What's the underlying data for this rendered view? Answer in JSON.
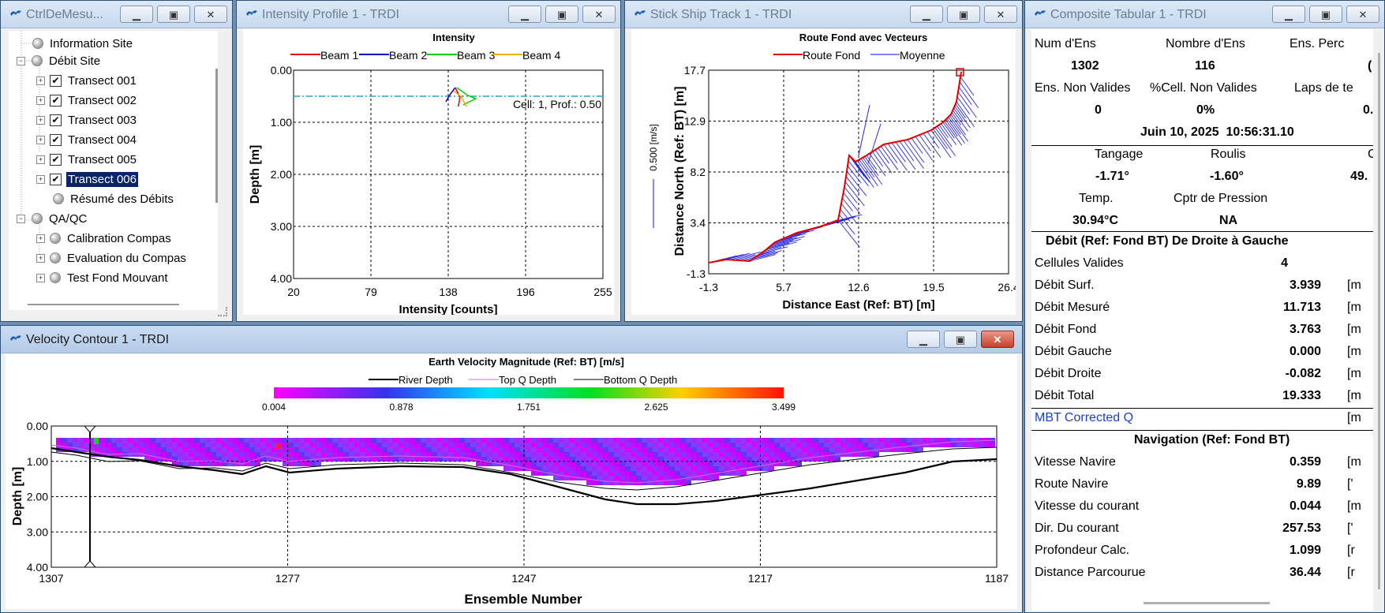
{
  "windows": {
    "ctrl": {
      "title": "CtrlDeMesu..."
    },
    "intensity": {
      "title": "Intensity Profile 1 - TRDI"
    },
    "track": {
      "title": "Stick Ship Track 1 - TRDI"
    },
    "composite": {
      "title": "Composite Tabular 1 - TRDI"
    },
    "velocity": {
      "title": "Velocity Contour 1 - TRDI"
    }
  },
  "tree": {
    "info": "Information Site",
    "debit": "Débit Site",
    "transects": [
      "Transect 001",
      "Transect 002",
      "Transect 003",
      "Transect 004",
      "Transect 005",
      "Transect 006"
    ],
    "resume": "Résumé des Débits",
    "qaqc": "QA/QC",
    "qa_items": [
      "Calibration Compas",
      "Evaluation du Compas",
      "Test Fond Mouvant"
    ]
  },
  "intensity_chart": {
    "title": "Intensity",
    "legend": [
      "Beam 1",
      "Beam 2",
      "Beam 3",
      "Beam 4"
    ],
    "colors": [
      "#e00000",
      "#0000d0",
      "#00d000",
      "#f0b000"
    ],
    "xlabel": "Intensity [counts]",
    "ylabel": "Depth [m]",
    "xticks": [
      "20",
      "79",
      "138",
      "196",
      "255"
    ],
    "yticks": [
      "0.00",
      "1.00",
      "2.00",
      "3.00",
      "4.00"
    ],
    "annotation": "Cell: 1, Prof.: 0.50"
  },
  "track_chart": {
    "title": "Route Fond avec Vecteurs",
    "legend": [
      "Route Fond",
      "Moyenne"
    ],
    "xlabel": "Distance East (Ref: BT) [m]",
    "ylabel": "Distance North (Ref: BT) [m]",
    "scale_label": "0.500 [m/s]",
    "xticks": [
      "-1.3",
      "5.7",
      "12.6",
      "19.5",
      "26.4"
    ],
    "yticks": [
      "17.7",
      "12.9",
      "8.2",
      "3.4",
      "-1.3"
    ]
  },
  "velocity_chart": {
    "title": "Earth Velocity Magnitude (Ref: BT) [m/s]",
    "legend": [
      "River Depth",
      "Top Q Depth",
      "Bottom Q Depth"
    ],
    "scale_ticks": [
      "0.004",
      "0.878",
      "1.751",
      "2.625",
      "3.499"
    ],
    "xlabel": "Ensemble Number",
    "ylabel": "Depth [m]",
    "xticks": [
      "1307",
      "1277",
      "1247",
      "1217",
      "1187"
    ],
    "yticks": [
      "0.00",
      "1.00",
      "2.00",
      "3.00",
      "4.00"
    ]
  },
  "composite": {
    "h1": [
      "Num d'Ens",
      "Nombre d'Ens",
      "Ens. Perc"
    ],
    "v1": [
      "1302",
      "116",
      "("
    ],
    "h2": [
      "Ens. Non Valides",
      "%Cell. Non Valides",
      "Laps de te"
    ],
    "v2": [
      "0",
      "0%",
      "0."
    ],
    "date": "Juin 10, 2025  10:56:31.10",
    "h3": [
      "Tangage",
      "Roulis",
      "Ca"
    ],
    "v3": [
      "-1.71°",
      "-1.60°",
      "49."
    ],
    "h4": [
      "Temp.",
      "Cptr de Pression"
    ],
    "v4": [
      "30.94°C",
      "NA"
    ],
    "debit_title": "Débit (Ref: Fond BT) De Droite à Gauche",
    "debit_rows": [
      {
        "label": "Cellules Valides",
        "value": "4",
        "unit": ""
      },
      {
        "label": "Débit Surf.",
        "value": "3.939",
        "unit": "[m"
      },
      {
        "label": "Débit Mesuré",
        "value": "11.713",
        "unit": "[m"
      },
      {
        "label": "Débit Fond",
        "value": "3.763",
        "unit": "[m"
      },
      {
        "label": "Débit Gauche",
        "value": "0.000",
        "unit": "[m"
      },
      {
        "label": "Débit Droite",
        "value": "-0.082",
        "unit": "[m"
      },
      {
        "label": "Débit Total",
        "value": "19.333",
        "unit": "[m"
      }
    ],
    "mbt_label": "MBT Corrected Q",
    "mbt_unit": "[m",
    "nav_title": "Navigation (Ref: Fond BT)",
    "nav_rows": [
      {
        "label": "Vitesse Navire",
        "value": "0.359",
        "unit": "[m"
      },
      {
        "label": "Route Navire",
        "value": "9.89",
        "unit": "['"
      },
      {
        "label": "Vitesse du courant",
        "value": "0.044",
        "unit": "[m"
      },
      {
        "label": "Dir. Du courant",
        "value": "257.53",
        "unit": "['"
      },
      {
        "label": "Profondeur Calc.",
        "value": "1.099",
        "unit": "[r"
      },
      {
        "label": "Distance Parcourue",
        "value": "36.44",
        "unit": "[r"
      }
    ]
  }
}
